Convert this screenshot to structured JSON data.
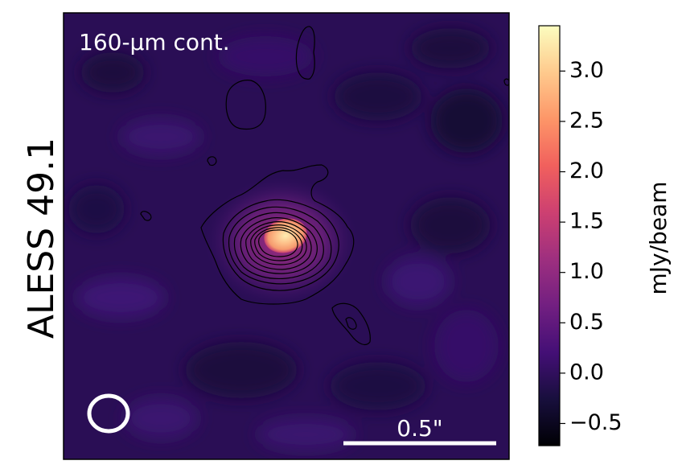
{
  "source_label": "ALESS 49.1",
  "panel_label": "160-μm cont.",
  "scalebar_label": "0.5\"",
  "colorbar": {
    "label": "mJy/beam",
    "ticks": [
      "3.0",
      "2.5",
      "2.0",
      "1.5",
      "1.0",
      "0.5",
      "0.0",
      "−0.5"
    ],
    "tick_values": [
      3.0,
      2.5,
      2.0,
      1.5,
      1.0,
      0.5,
      0.0,
      -0.5
    ],
    "vmin": -0.72,
    "vmax": 3.45,
    "colormap": "magma",
    "stops": [
      "#000004",
      "#180f3d",
      "#440f76",
      "#721f81",
      "#9e2f7f",
      "#cd4071",
      "#f1605d",
      "#fd9668",
      "#feca8d",
      "#fcfdbf"
    ]
  },
  "colors": {
    "background": "#2a0e55",
    "contour": "#000000",
    "annotation": "#ffffff"
  }
}
